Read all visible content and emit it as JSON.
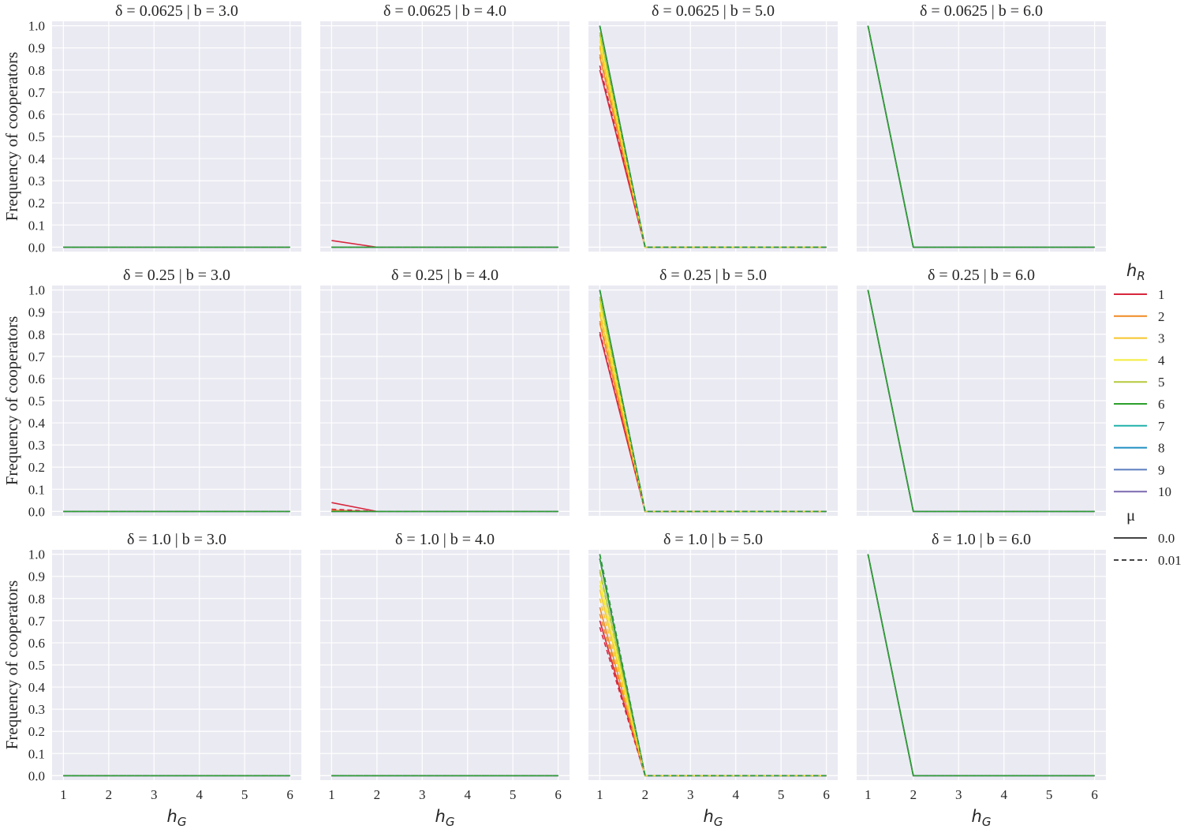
{
  "chart_data": {
    "type": "line",
    "layout": "facet-grid",
    "rows": 3,
    "cols": 4,
    "xlabel": "h_G",
    "ylabel": "Frequency of cooperators",
    "x_ticks": [
      1,
      2,
      3,
      4,
      5,
      6
    ],
    "y_ticks": [
      0.0,
      0.1,
      0.2,
      0.3,
      0.4,
      0.5,
      0.6,
      0.7,
      0.8,
      0.9,
      1.0
    ],
    "x_tick_labels": [
      "1",
      "2",
      "3",
      "4",
      "5",
      "6"
    ],
    "y_tick_labels": [
      "0.0",
      "0.1",
      "0.2",
      "0.3",
      "0.4",
      "0.5",
      "0.6",
      "0.7",
      "0.8",
      "0.9",
      "1.0"
    ],
    "xlim": [
      0.75,
      6.25
    ],
    "ylim": [
      -0.02,
      1.02
    ],
    "grid": true,
    "legend_position": "right",
    "colors": {
      "background": "#eaeaf2",
      "grid": "#ffffff"
    },
    "legend": {
      "hue_title": "h_R",
      "hue_entries": [
        {
          "label": "1",
          "color": "#d7263d"
        },
        {
          "label": "2",
          "color": "#f08a24"
        },
        {
          "label": "3",
          "color": "#f7c52b"
        },
        {
          "label": "4",
          "color": "#f4ec3a"
        },
        {
          "label": "5",
          "color": "#b5c93c"
        },
        {
          "label": "6",
          "color": "#2ca02c"
        },
        {
          "label": "7",
          "color": "#20b2aa"
        },
        {
          "label": "8",
          "color": "#1f8fc0"
        },
        {
          "label": "9",
          "color": "#5b7dbf"
        },
        {
          "label": "10",
          "color": "#7b68b0"
        }
      ],
      "style_title": "μ",
      "style_entries": [
        {
          "label": "0.0",
          "dash": "solid"
        },
        {
          "label": "0.01",
          "dash": "dashed"
        }
      ]
    },
    "panels": [
      {
        "title": "δ = 0.0625 | b = 3.0",
        "start": {
          "0.0": [
            0,
            0,
            0,
            0,
            0,
            0
          ],
          "0.01": [
            0,
            0,
            0,
            0,
            0,
            0
          ]
        }
      },
      {
        "title": "δ = 0.0625 | b = 4.0",
        "start": {
          "0.0": [
            0.03,
            0,
            0,
            0,
            0,
            0
          ],
          "0.01": [
            0,
            0,
            0,
            0,
            0,
            0
          ]
        }
      },
      {
        "title": "δ = 0.0625 | b = 5.0",
        "start": {
          "0.0": [
            0.8,
            0.86,
            0.9,
            0.93,
            0.96,
            1.0
          ],
          "0.01": [
            0.82,
            0.87,
            0.91,
            0.94,
            0.97,
            1.0
          ]
        }
      },
      {
        "title": "δ = 0.0625 | b = 6.0",
        "start": {
          "0.0": [
            1,
            1,
            1,
            1,
            1,
            1
          ],
          "0.01": [
            1,
            1,
            1,
            1,
            1,
            1
          ]
        }
      },
      {
        "title": "δ = 0.25 | b = 3.0",
        "start": {
          "0.0": [
            0,
            0,
            0,
            0,
            0,
            0
          ],
          "0.01": [
            0,
            0,
            0,
            0,
            0,
            0
          ]
        }
      },
      {
        "title": "δ = 0.25 | b = 4.0",
        "start": {
          "0.0": [
            0.04,
            0.005,
            0,
            0,
            0,
            0
          ],
          "0.01": [
            0.01,
            0,
            0,
            0,
            0,
            0
          ]
        }
      },
      {
        "title": "δ = 0.25 | b = 5.0",
        "start": {
          "0.0": [
            0.8,
            0.85,
            0.89,
            0.93,
            0.96,
            1.0
          ],
          "0.01": [
            0.81,
            0.86,
            0.9,
            0.94,
            0.97,
            1.0
          ]
        }
      },
      {
        "title": "δ = 0.25 | b = 6.0",
        "start": {
          "0.0": [
            1,
            1,
            1,
            1,
            1,
            1
          ],
          "0.01": [
            1,
            1,
            1,
            1,
            1,
            1
          ]
        }
      },
      {
        "title": "δ = 1.0 | b = 3.0",
        "start": {
          "0.0": [
            0,
            0,
            0,
            0,
            0,
            0
          ],
          "0.01": [
            0,
            0,
            0,
            0,
            0,
            0
          ]
        }
      },
      {
        "title": "δ = 1.0 | b = 4.0",
        "start": {
          "0.0": [
            0,
            0,
            0,
            0,
            0,
            0
          ],
          "0.01": [
            0,
            0,
            0,
            0,
            0,
            0
          ]
        }
      },
      {
        "title": "δ = 1.0 | b = 5.0",
        "start": {
          "0.0": [
            0.7,
            0.76,
            0.84,
            0.88,
            0.93,
            0.98
          ],
          "0.01": [
            0.67,
            0.73,
            0.8,
            0.86,
            0.92,
            1.0
          ]
        }
      },
      {
        "title": "δ = 1.0 | b = 6.0",
        "start": {
          "0.0": [
            1,
            1,
            1,
            1,
            1,
            1
          ],
          "0.01": [
            1,
            1,
            1,
            1,
            1,
            1
          ]
        }
      }
    ]
  }
}
